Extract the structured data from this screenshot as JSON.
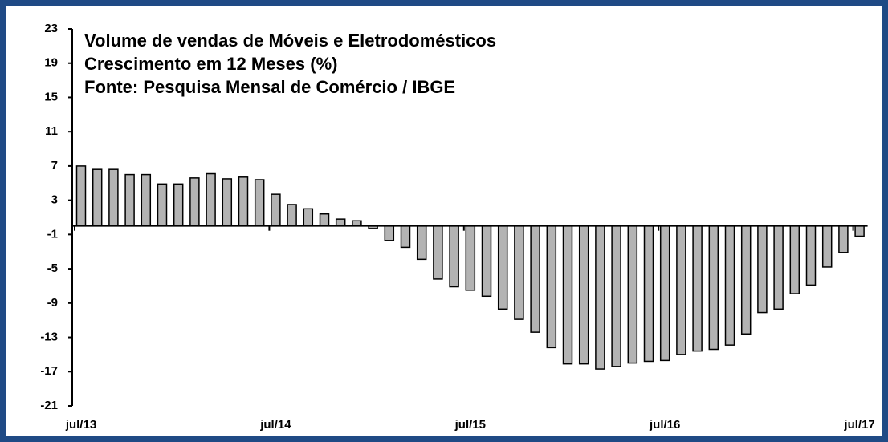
{
  "chart_data": {
    "type": "bar",
    "title": [
      "Volume de vendas de Móveis e Eletrodomésticos",
      "Crescimento em 12 Meses (%)",
      "Fonte: Pesquisa Mensal de Comércio / IBGE"
    ],
    "categories": [
      "jul/13",
      null,
      null,
      null,
      null,
      null,
      null,
      null,
      null,
      null,
      null,
      null,
      "jul/14",
      null,
      null,
      null,
      null,
      null,
      null,
      null,
      null,
      null,
      null,
      null,
      "jul/15",
      null,
      null,
      null,
      null,
      null,
      null,
      null,
      null,
      null,
      null,
      null,
      "jul/16",
      null,
      null,
      null,
      null,
      null,
      null,
      null,
      null,
      null,
      null,
      null,
      "jul/17"
    ],
    "values": [
      7.0,
      6.6,
      6.6,
      6.0,
      6.0,
      4.9,
      4.9,
      5.6,
      6.1,
      5.5,
      5.7,
      5.4,
      3.7,
      2.5,
      2.0,
      1.4,
      0.8,
      0.6,
      -0.3,
      -1.7,
      -2.5,
      -3.9,
      -6.2,
      -7.1,
      -7.5,
      -8.2,
      -9.7,
      -10.9,
      -12.4,
      -14.2,
      -16.1,
      -16.1,
      -16.7,
      -16.4,
      -16.0,
      -15.8,
      -15.7,
      -15.0,
      -14.6,
      -14.4,
      -13.9,
      -12.6,
      -10.1,
      -9.7,
      -7.9,
      -6.9,
      -4.8,
      -3.1,
      -1.2
    ],
    "color": "#b3b3b3",
    "ylim": [
      -21,
      23
    ],
    "yticks": [
      23,
      19,
      15,
      11,
      7,
      3,
      -1,
      -5,
      -9,
      -13,
      -17,
      -21
    ]
  }
}
